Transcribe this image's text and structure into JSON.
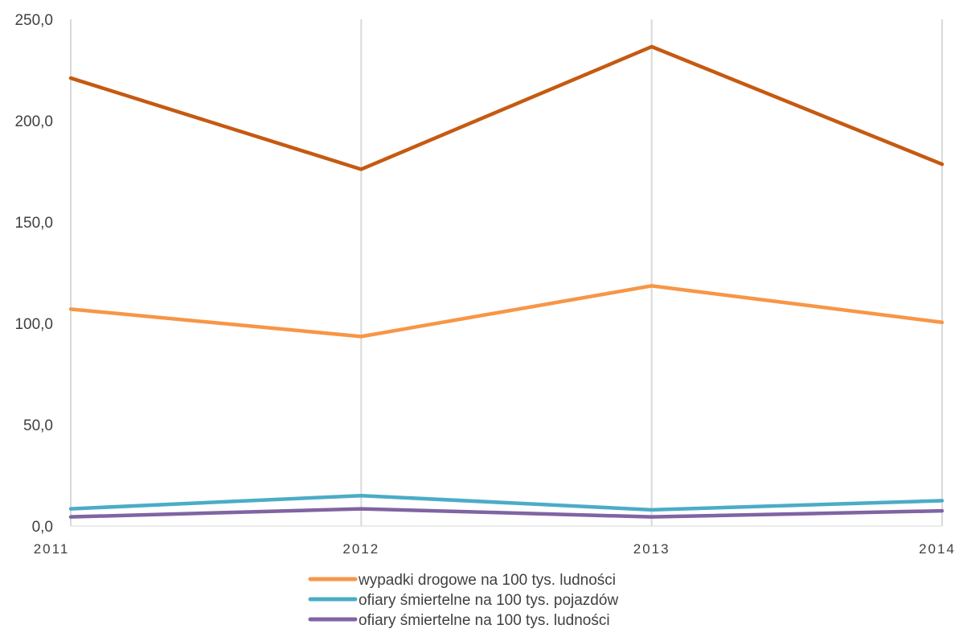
{
  "chart_data": {
    "type": "line",
    "title": "",
    "xlabel": "",
    "ylabel": "",
    "categories": [
      "2011",
      "2012",
      "2013",
      "2014"
    ],
    "ylim": [
      0,
      250
    ],
    "yticks": [
      "0,0",
      "50,0",
      "100,0",
      "150,0",
      "200,0",
      "250,0"
    ],
    "ytick_values": [
      0,
      50,
      100,
      150,
      200,
      250
    ],
    "grid": "vertical",
    "legend_position": "bottom",
    "series": [
      {
        "name": "",
        "color": "#C55A11",
        "values": [
          221.0,
          176.0,
          236.5,
          178.5
        ],
        "in_legend": false
      },
      {
        "name": "wypadki drogowe na 100 tys. ludności",
        "color": "#F79646",
        "values": [
          107.0,
          93.5,
          118.5,
          100.5
        ],
        "in_legend": true
      },
      {
        "name": "ofiary śmiertelne na 100 tys. pojazdów",
        "color": "#4BACC6",
        "values": [
          8.5,
          15.0,
          8.0,
          12.5
        ],
        "in_legend": true
      },
      {
        "name": "ofiary śmiertelne na 100 tys. ludności",
        "color": "#8064A2",
        "values": [
          4.5,
          8.5,
          4.5,
          7.5
        ],
        "in_legend": true
      }
    ]
  }
}
